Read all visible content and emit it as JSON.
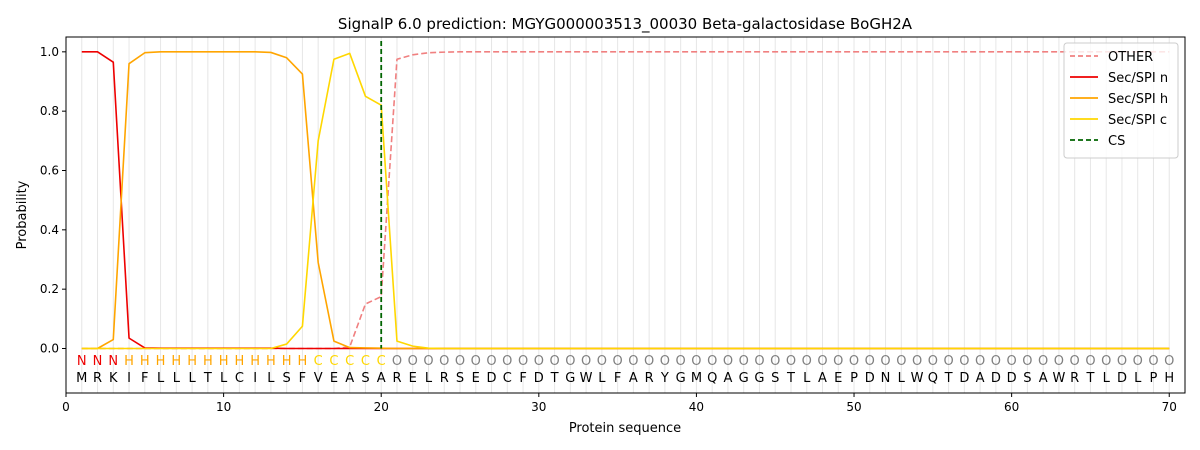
{
  "chart_data": {
    "type": "line",
    "title": "SignalP 6.0 prediction: MGYG000003513_00030 Beta-galactosidase BoGH2A",
    "xlabel": "Protein sequence",
    "ylabel": "Probability",
    "xlim": [
      0,
      71
    ],
    "ylim": [
      -0.15,
      1.05
    ],
    "xticks": [
      0,
      10,
      20,
      30,
      40,
      50,
      60,
      70
    ],
    "yticks": [
      0.0,
      0.2,
      0.4,
      0.6,
      0.8,
      1.0
    ],
    "grid": "vertical lines at each residue position",
    "legend_position": "top-right",
    "x": [
      1,
      2,
      3,
      4,
      5,
      6,
      7,
      8,
      9,
      10,
      11,
      12,
      13,
      14,
      15,
      16,
      17,
      18,
      19,
      20,
      21,
      22,
      23,
      24,
      25,
      26,
      27,
      28,
      29,
      30,
      31,
      32,
      33,
      34,
      35,
      36,
      37,
      38,
      39,
      40,
      41,
      42,
      43,
      44,
      45,
      46,
      47,
      48,
      49,
      50,
      51,
      52,
      53,
      54,
      55,
      56,
      57,
      58,
      59,
      60,
      61,
      62,
      63,
      64,
      65,
      66,
      67,
      68,
      69,
      70
    ],
    "residues": [
      "M",
      "R",
      "K",
      "I",
      "F",
      "L",
      "L",
      "L",
      "T",
      "L",
      "C",
      "I",
      "L",
      "S",
      "F",
      "V",
      "E",
      "A",
      "S",
      "A",
      "R",
      "E",
      "L",
      "R",
      "S",
      "E",
      "D",
      "C",
      "F",
      "D",
      "T",
      "G",
      "W",
      "L",
      "F",
      "A",
      "R",
      "Y",
      "G",
      "M",
      "Q",
      "A",
      "G",
      "G",
      "S",
      "T",
      "L",
      "A",
      "E",
      "P",
      "D",
      "N",
      "L",
      "W",
      "Q",
      "T",
      "D",
      "A",
      "D",
      "D",
      "S",
      "A",
      "W",
      "R",
      "T",
      "L",
      "D",
      "L",
      "P",
      "H"
    ],
    "labels": [
      "N",
      "N",
      "N",
      "H",
      "H",
      "H",
      "H",
      "H",
      "H",
      "H",
      "H",
      "H",
      "H",
      "H",
      "H",
      "C",
      "C",
      "C",
      "C",
      "C",
      "O",
      "O",
      "O",
      "O",
      "O",
      "O",
      "O",
      "O",
      "O",
      "O",
      "O",
      "O",
      "O",
      "O",
      "O",
      "O",
      "O",
      "O",
      "O",
      "O",
      "O",
      "O",
      "O",
      "O",
      "O",
      "O",
      "O",
      "O",
      "O",
      "O",
      "O",
      "O",
      "O",
      "O",
      "O",
      "O",
      "O",
      "O",
      "O",
      "O",
      "O",
      "O",
      "O",
      "O",
      "O",
      "O",
      "O",
      "O",
      "O",
      "O"
    ],
    "label_colors": {
      "N": "#ee0000",
      "H": "#ffa500",
      "C": "#ffd700",
      "O": "#808080"
    },
    "series": [
      {
        "name": "OTHER",
        "color": "#f08080",
        "dash": "dashed",
        "values": [
          0,
          0,
          0,
          0,
          0,
          0,
          0,
          0,
          0,
          0,
          0,
          0,
          0,
          0,
          0,
          0,
          0,
          0.005,
          0.15,
          0.175,
          0.975,
          0.99,
          0.997,
          0.999,
          1,
          1,
          1,
          1,
          1,
          1,
          1,
          1,
          1,
          1,
          1,
          1,
          1,
          1,
          1,
          1,
          1,
          1,
          1,
          1,
          1,
          1,
          1,
          1,
          1,
          1,
          1,
          1,
          1,
          1,
          1,
          1,
          1,
          1,
          1,
          1,
          1,
          1,
          1,
          1,
          1,
          1,
          1,
          1,
          1,
          1
        ]
      },
      {
        "name": "Sec/SPI n",
        "color": "#ee0000",
        "dash": "solid",
        "values": [
          1.0,
          1.0,
          0.965,
          0.035,
          0.002,
          0.001,
          0.001,
          0.001,
          0.001,
          0.001,
          0.001,
          0.001,
          0.001,
          0,
          0,
          0,
          0,
          0,
          0,
          0,
          0,
          0,
          0,
          0,
          0,
          0,
          0,
          0,
          0,
          0,
          0,
          0,
          0,
          0,
          0,
          0,
          0,
          0,
          0,
          0,
          0,
          0,
          0,
          0,
          0,
          0,
          0,
          0,
          0,
          0,
          0,
          0,
          0,
          0,
          0,
          0,
          0,
          0,
          0,
          0,
          0,
          0,
          0,
          0,
          0,
          0,
          0,
          0,
          0,
          0
        ]
      },
      {
        "name": "Sec/SPI h",
        "color": "#ffa500",
        "dash": "solid",
        "values": [
          0,
          0,
          0.03,
          0.96,
          0.997,
          1.0,
          1.0,
          1.0,
          1.0,
          1.0,
          1.0,
          1.0,
          0.998,
          0.98,
          0.925,
          0.29,
          0.025,
          0.003,
          0.002,
          0.001,
          0,
          0,
          0,
          0,
          0,
          0,
          0,
          0,
          0,
          0,
          0,
          0,
          0,
          0,
          0,
          0,
          0,
          0,
          0,
          0,
          0,
          0,
          0,
          0,
          0,
          0,
          0,
          0,
          0,
          0,
          0,
          0,
          0,
          0,
          0,
          0,
          0,
          0,
          0,
          0,
          0,
          0,
          0,
          0,
          0,
          0,
          0,
          0,
          0,
          0
        ]
      },
      {
        "name": "Sec/SPI c",
        "color": "#ffd700",
        "dash": "solid",
        "values": [
          0,
          0,
          0,
          0,
          0,
          0,
          0,
          0,
          0,
          0,
          0,
          0,
          0,
          0.015,
          0.075,
          0.7,
          0.975,
          0.995,
          0.85,
          0.82,
          0.025,
          0.008,
          0.001,
          0,
          0,
          0,
          0,
          0,
          0,
          0,
          0,
          0,
          0,
          0,
          0,
          0,
          0,
          0,
          0,
          0,
          0,
          0,
          0,
          0,
          0,
          0,
          0,
          0,
          0,
          0,
          0,
          0,
          0,
          0,
          0,
          0,
          0,
          0,
          0,
          0,
          0,
          0,
          0,
          0,
          0,
          0,
          0,
          0,
          0,
          0
        ]
      }
    ],
    "cs": {
      "name": "CS",
      "x": 20,
      "color": "#006400"
    }
  }
}
